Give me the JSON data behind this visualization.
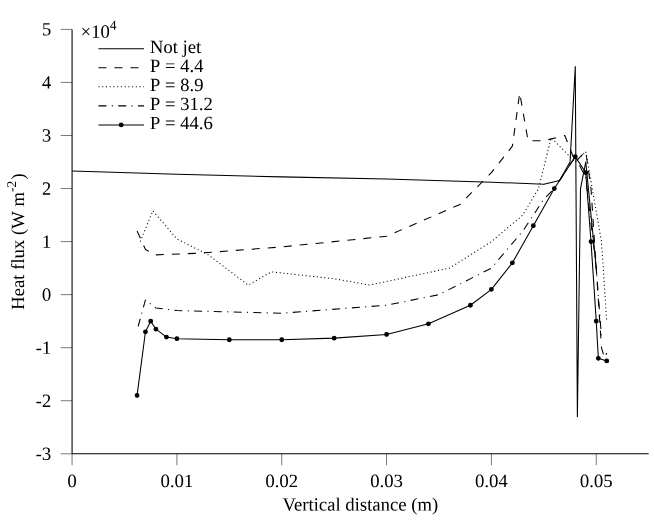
{
  "chart_data": {
    "type": "line",
    "xlabel": "Vertical distance (m)",
    "ylabel": "Heat flux (W m$^{-2}$)",
    "annotations": [
      "×10$^{4}$"
    ],
    "xlim": [
      0,
      0.055
    ],
    "xticks": [
      0,
      0.01,
      0.02,
      0.03,
      0.04,
      0.05
    ],
    "ylim": [
      -3,
      5
    ],
    "yticks": [
      -3,
      -2,
      -1,
      0,
      1,
      2,
      3,
      4,
      5
    ],
    "grid": false,
    "legend": "top left",
    "series": [
      {
        "name": "Not jet",
        "color": "#000000",
        "line_style": "solid",
        "marker": "none",
        "x": [
          0,
          0.01,
          0.02,
          0.03,
          0.04,
          0.045,
          0.0465,
          0.0475,
          0.048,
          0.0482,
          0.0485,
          0.049,
          0.0495,
          0.05
        ],
        "values": [
          2.33,
          2.27,
          2.22,
          2.18,
          2.12,
          2.08,
          2.15,
          2.5,
          4.3,
          -2.3,
          2.0,
          2.5,
          1.5,
          0.5
        ]
      },
      {
        "name": "P = 4.4",
        "color": "#000000",
        "line_style": "dashed",
        "marker": "none",
        "x": [
          0.0062,
          0.007,
          0.008,
          0.012,
          0.02,
          0.03,
          0.037,
          0.04,
          0.042,
          0.0427,
          0.0435,
          0.045,
          0.047,
          0.048,
          0.049,
          0.0495,
          0.05,
          0.0505,
          0.0508,
          0.051
        ],
        "values": [
          1.2,
          0.85,
          0.75,
          0.78,
          0.9,
          1.1,
          1.7,
          2.3,
          2.8,
          3.8,
          2.9,
          2.9,
          3.0,
          2.5,
          2.7,
          2.0,
          0.5,
          -1.0,
          -1.2,
          -1.1
        ]
      },
      {
        "name": "P = 8.9",
        "color": "#000000",
        "line_style": "dotted",
        "marker": "none",
        "x": [
          0.0065,
          0.0077,
          0.01,
          0.013,
          0.0168,
          0.019,
          0.025,
          0.0284,
          0.036,
          0.04,
          0.043,
          0.0445,
          0.0457,
          0.048,
          0.049,
          0.0505,
          0.051
        ],
        "values": [
          1.0,
          1.58,
          1.05,
          0.75,
          0.18,
          0.43,
          0.3,
          0.18,
          0.5,
          1.0,
          1.5,
          2.0,
          2.96,
          2.5,
          2.7,
          1.0,
          -0.5
        ]
      },
      {
        "name": "P = 31.2",
        "color": "#000000",
        "line_style": "dashdotted",
        "marker": "none",
        "x": [
          0.0063,
          0.007,
          0.008,
          0.01,
          0.02,
          0.03,
          0.035,
          0.04,
          0.043,
          0.045,
          0.046,
          0.048,
          0.049,
          0.05,
          0.0505
        ],
        "values": [
          -0.6,
          -0.1,
          -0.25,
          -0.3,
          -0.35,
          -0.2,
          0,
          0.5,
          1.2,
          1.8,
          2.0,
          2.6,
          2.2,
          0.5,
          -0.8
        ]
      },
      {
        "name": "P = 44.6",
        "color": "#000000",
        "line_style": "solid",
        "marker": "circle",
        "x": [
          0.0062,
          0.007,
          0.0075,
          0.008,
          0.009,
          0.01,
          0.015,
          0.02,
          0.025,
          0.03,
          0.034,
          0.038,
          0.04,
          0.042,
          0.044,
          0.046,
          0.048,
          0.049,
          0.0495,
          0.05,
          0.0502,
          0.051
        ],
        "values": [
          -1.9,
          -0.7,
          -0.5,
          -0.65,
          -0.8,
          -0.83,
          -0.85,
          -0.85,
          -0.82,
          -0.75,
          -0.55,
          -0.2,
          0.1,
          0.6,
          1.3,
          2.0,
          2.6,
          2.3,
          1.0,
          -0.5,
          -1.2,
          -1.25
        ]
      }
    ]
  }
}
